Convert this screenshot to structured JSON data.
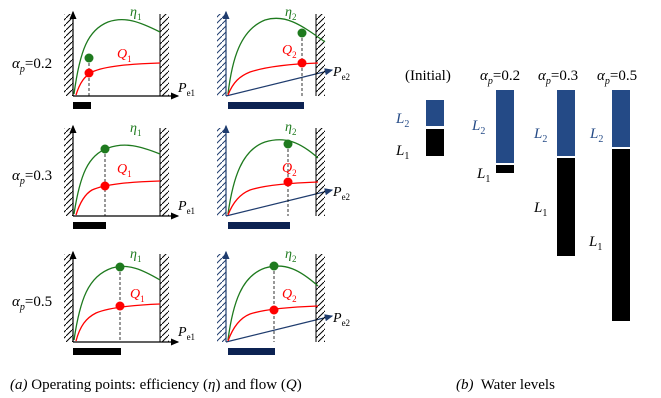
{
  "panel_a": {
    "rows": [
      {
        "alpha_label": "α",
        "alpha_sub": "p",
        "alpha_value": "=0.2",
        "left": {
          "eta": "η",
          "eta_sub": "1",
          "q": "Q",
          "q_sub": "1",
          "axis": "P",
          "axis_sub": "e1"
        },
        "right": {
          "eta": "η",
          "eta_sub": "2",
          "q": "Q",
          "q_sub": "2",
          "axis": "P",
          "axis_sub": "e2"
        }
      },
      {
        "alpha_label": "α",
        "alpha_sub": "p",
        "alpha_value": "=0.3",
        "left": {
          "eta": "η",
          "eta_sub": "1",
          "q": "Q",
          "q_sub": "1",
          "axis": "P",
          "axis_sub": "e1"
        },
        "right": {
          "eta": "η",
          "eta_sub": "2",
          "q": "Q",
          "q_sub": "2",
          "axis": "P",
          "axis_sub": "e2"
        }
      },
      {
        "alpha_label": "α",
        "alpha_sub": "p",
        "alpha_value": "=0.5",
        "left": {
          "eta": "η",
          "eta_sub": "1",
          "q": "Q",
          "q_sub": "1",
          "axis": "P",
          "axis_sub": "e1"
        },
        "right": {
          "eta": "η",
          "eta_sub": "2",
          "q": "Q",
          "q_sub": "2",
          "axis": "P",
          "axis_sub": "e2"
        }
      }
    ],
    "caption": {
      "label": "(a)",
      "text_1": " Operating points: efficiency (",
      "eta": "η",
      "text_2": ") and flow (",
      "q": "Q",
      "text_3": ")"
    }
  },
  "panel_b": {
    "columns": [
      {
        "header": "(Initial)",
        "l2": "L",
        "l2_sub": "2",
        "l1": "L",
        "l1_sub": "1"
      },
      {
        "header_alpha": "α",
        "header_sub": "p",
        "header_value": "=0.2",
        "l2": "L",
        "l2_sub": "2",
        "l1": "L",
        "l1_sub": "1"
      },
      {
        "header_alpha": "α",
        "header_sub": "p",
        "header_value": "=0.3",
        "l2": "L",
        "l2_sub": "2",
        "l1": "L",
        "l1_sub": "1"
      },
      {
        "header_alpha": "α",
        "header_sub": "p",
        "header_value": "=0.5",
        "l2": "L",
        "l2_sub": "2",
        "l1": "L",
        "l1_sub": "1"
      }
    ],
    "caption": {
      "label": "(b)",
      "text": "  Water levels"
    }
  },
  "colors": {
    "eta_curve": "#1e7a1e",
    "q_curve": "#ff0000",
    "axis_blue": "#1f3c6e",
    "l2_bar": "#244a86",
    "l1_bar": "#000000",
    "range_bar_right": "#0c2252"
  }
}
